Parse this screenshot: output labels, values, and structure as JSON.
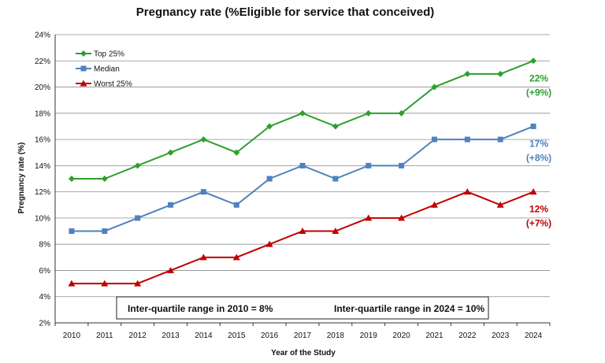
{
  "chart_data": {
    "type": "line",
    "title": "Pregnancy rate (%Eligible for service that conceived)",
    "xlabel": "Year of the Study",
    "ylabel": "Pregnancy rate (%)",
    "x": [
      "2010",
      "2011",
      "2012",
      "2013",
      "2014",
      "2015",
      "2016",
      "2017",
      "2018",
      "2019",
      "2020",
      "2021",
      "2022",
      "2023",
      "2024"
    ],
    "ylim": [
      2,
      24
    ],
    "yticks": [
      "2%",
      "4%",
      "6%",
      "8%",
      "10%",
      "12%",
      "14%",
      "16%",
      "18%",
      "20%",
      "22%",
      "24%"
    ],
    "grid": true,
    "legend_position": "top-left",
    "series": [
      {
        "name": "Top 25%",
        "color": "#2ca02c",
        "marker": "diamond",
        "values": [
          13,
          13,
          14,
          15,
          16,
          15,
          17,
          18,
          17,
          18,
          18,
          20,
          21,
          21,
          22
        ],
        "end_label": "22%",
        "end_change": "(+9%)"
      },
      {
        "name": "Median",
        "color": "#4f81bd",
        "marker": "square",
        "values": [
          9,
          9,
          10,
          11,
          12,
          11,
          13,
          14,
          13,
          14,
          14,
          16,
          16,
          16,
          17
        ],
        "end_label": "17%",
        "end_change": "(+8%)"
      },
      {
        "name": "Worst 25%",
        "color": "#c00000",
        "marker": "triangle",
        "values": [
          5,
          5,
          5,
          6,
          7,
          7,
          8,
          9,
          9,
          10,
          10,
          11,
          12,
          11,
          12
        ],
        "end_label": "12%",
        "end_change": "(+7%)"
      }
    ],
    "annotations": [
      "Inter-quartile range in 2010 = 8%",
      "Inter-quartile range in 2024 = 10%"
    ]
  }
}
